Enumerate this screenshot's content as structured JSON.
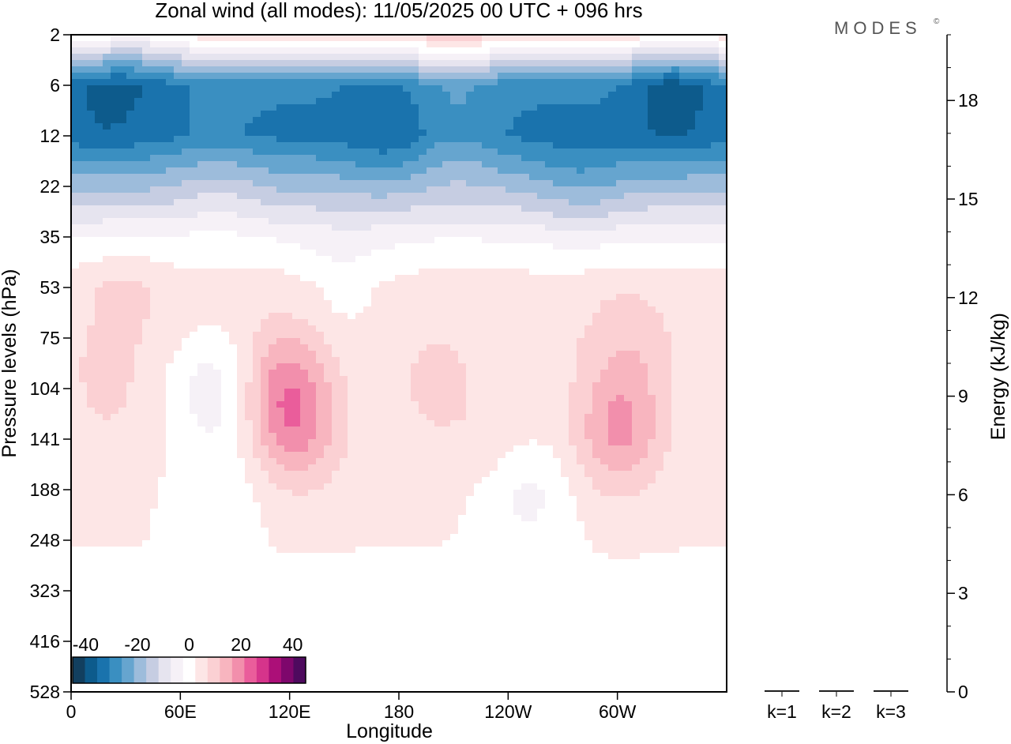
{
  "header": {
    "title": "Zonal wind (all modes):  11/05/2025  00 UTC  + 096 hrs",
    "logo": "MODES",
    "logo_mark": "©"
  },
  "chart_data": [
    {
      "type": "heatmap",
      "title": "Zonal wind (all modes):  11/05/2025  00 UTC  + 096 hrs",
      "xlabel": "Longitude",
      "ylabel": "Pressure levels (hPa)",
      "x_ticks": [
        "0",
        "60E",
        "120E",
        "180",
        "120W",
        "60W"
      ],
      "x_tick_degrees": [
        0,
        60,
        120,
        180,
        240,
        300
      ],
      "xlim": [
        0,
        360
      ],
      "y_ticks": [
        "2",
        "6",
        "12",
        "22",
        "35",
        "53",
        "75",
        "104",
        "141",
        "188",
        "248",
        "323",
        "416",
        "528"
      ],
      "y_scale": "categorical pressure levels, top to bottom",
      "colorbar": {
        "tick_labels": [
          "-40",
          "-20",
          "0",
          "20",
          "40"
        ],
        "tick_values": [
          -40,
          -20,
          0,
          20,
          40
        ],
        "range": [
          -45,
          45
        ],
        "colors": [
          "#123f5f",
          "#0d5b8c",
          "#1a73ad",
          "#3a8fc1",
          "#66a5cf",
          "#9dbcdb",
          "#c6cde2",
          "#e6e4ef",
          "#f6f1f7",
          "#ffffff",
          "#fde6e6",
          "#fbd0d3",
          "#f8b5bf",
          "#f28fac",
          "#ea5d9b",
          "#d6348b",
          "#ac0f78",
          "#7e076c",
          "#4e0a5e"
        ]
      },
      "wind_field": {
        "base_profile": [
          {
            "level": "2",
            "value": 6
          },
          {
            "level": "6",
            "value": -30
          },
          {
            "level": "12",
            "value": -32
          },
          {
            "level": "22",
            "value": -18
          },
          {
            "level": "35",
            "value": -3
          },
          {
            "level": "53",
            "value": 5
          },
          {
            "level": "75",
            "value": 5
          },
          {
            "level": "104",
            "value": 4
          },
          {
            "level": "141",
            "value": 4
          },
          {
            "level": "188",
            "value": 3
          },
          {
            "level": "248",
            "value": 2.5
          },
          {
            "level": "323",
            "value": 1.5
          },
          {
            "level": "416",
            "value": 0.8
          },
          {
            "level": "528",
            "value": 0
          }
        ],
        "features": [
          {
            "lon": 118,
            "level": "104",
            "value": 14
          },
          {
            "lon": 125,
            "level": "141",
            "value": 9
          },
          {
            "lon": 78,
            "level": "104",
            "value": -9
          },
          {
            "lon": 80,
            "level": "188",
            "value": -4
          },
          {
            "lon": 200,
            "level": "104",
            "value": 4
          },
          {
            "lon": 236,
            "level": "141",
            "value": 3
          },
          {
            "lon": 250,
            "level": "188",
            "value": -7
          },
          {
            "lon": 300,
            "level": "141",
            "value": 11
          },
          {
            "lon": 305,
            "level": "104",
            "value": 5
          },
          {
            "lon": 305,
            "level": "75",
            "value": 3
          },
          {
            "lon": 20,
            "level": "104",
            "value": 4
          },
          {
            "lon": 30,
            "level": "53",
            "value": 3
          },
          {
            "lon": 150,
            "level": "53",
            "value": -4
          },
          {
            "lon": 40,
            "level": "2",
            "value": -5
          },
          {
            "lon": 210,
            "level": "2",
            "value": 5
          },
          {
            "lon": 285,
            "level": "2",
            "value": 3
          },
          {
            "lon": 330,
            "level": "6",
            "value": -8
          },
          {
            "lon": 20,
            "level": "6",
            "value": -6
          },
          {
            "lon": 210,
            "level": "12",
            "value": 5
          },
          {
            "lon": 175,
            "level": "12",
            "value": -4
          },
          {
            "lon": 80,
            "level": "22",
            "value": 4
          },
          {
            "lon": 280,
            "level": "22",
            "value": -4
          }
        ]
      }
    },
    {
      "type": "bar",
      "ylabel": "Energy (kJ/kg)",
      "categories": [
        "k=1",
        "k=2",
        "k=3"
      ],
      "values": [
        0.05,
        0.05,
        0.05
      ],
      "ylim": [
        0,
        20
      ],
      "y_ticks": [
        0,
        3,
        6,
        9,
        12,
        15,
        18
      ]
    }
  ]
}
